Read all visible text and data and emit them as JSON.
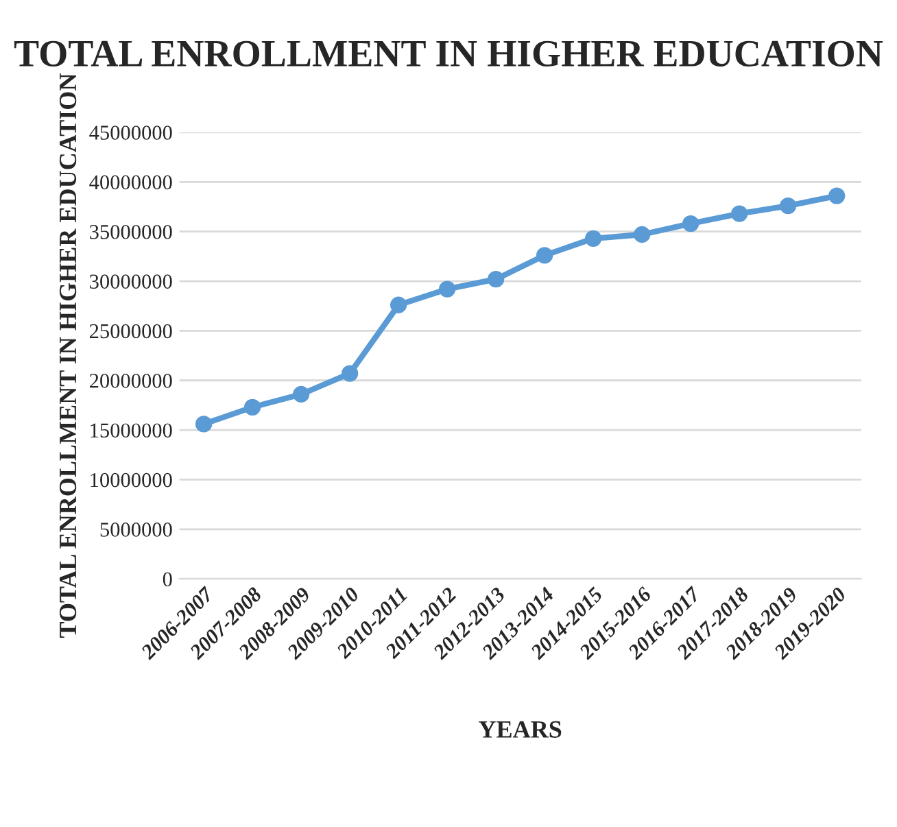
{
  "chart_data": {
    "type": "line",
    "title": "TOTAL ENROLLMENT IN HIGHER EDUCATION",
    "xlabel": "YEARS",
    "ylabel": "TOTAL ENROLLMENT IN HIGHER EDUCATION",
    "categories": [
      "2006-2007",
      "2007-2008",
      "2008-2009",
      "2009-2010",
      "2010-2011",
      "2011-2012",
      "2012-2013",
      "2013-2014",
      "2014-2015",
      "2015-2016",
      "2016-2017",
      "2017-2018",
      "2018-2019",
      "2019-2020"
    ],
    "series": [
      {
        "color": "#5b9bd5",
        "values": [
          15600000,
          17300000,
          18600000,
          20700000,
          27600000,
          29200000,
          30200000,
          32600000,
          34300000,
          34700000,
          35800000,
          36800000,
          37600000,
          38600000
        ]
      }
    ],
    "ylim": [
      0,
      45000000
    ],
    "yticks": [
      0,
      5000000,
      10000000,
      15000000,
      20000000,
      25000000,
      30000000,
      35000000,
      40000000,
      45000000
    ],
    "grid": "y",
    "marker": "circle",
    "line_style": "solid"
  }
}
